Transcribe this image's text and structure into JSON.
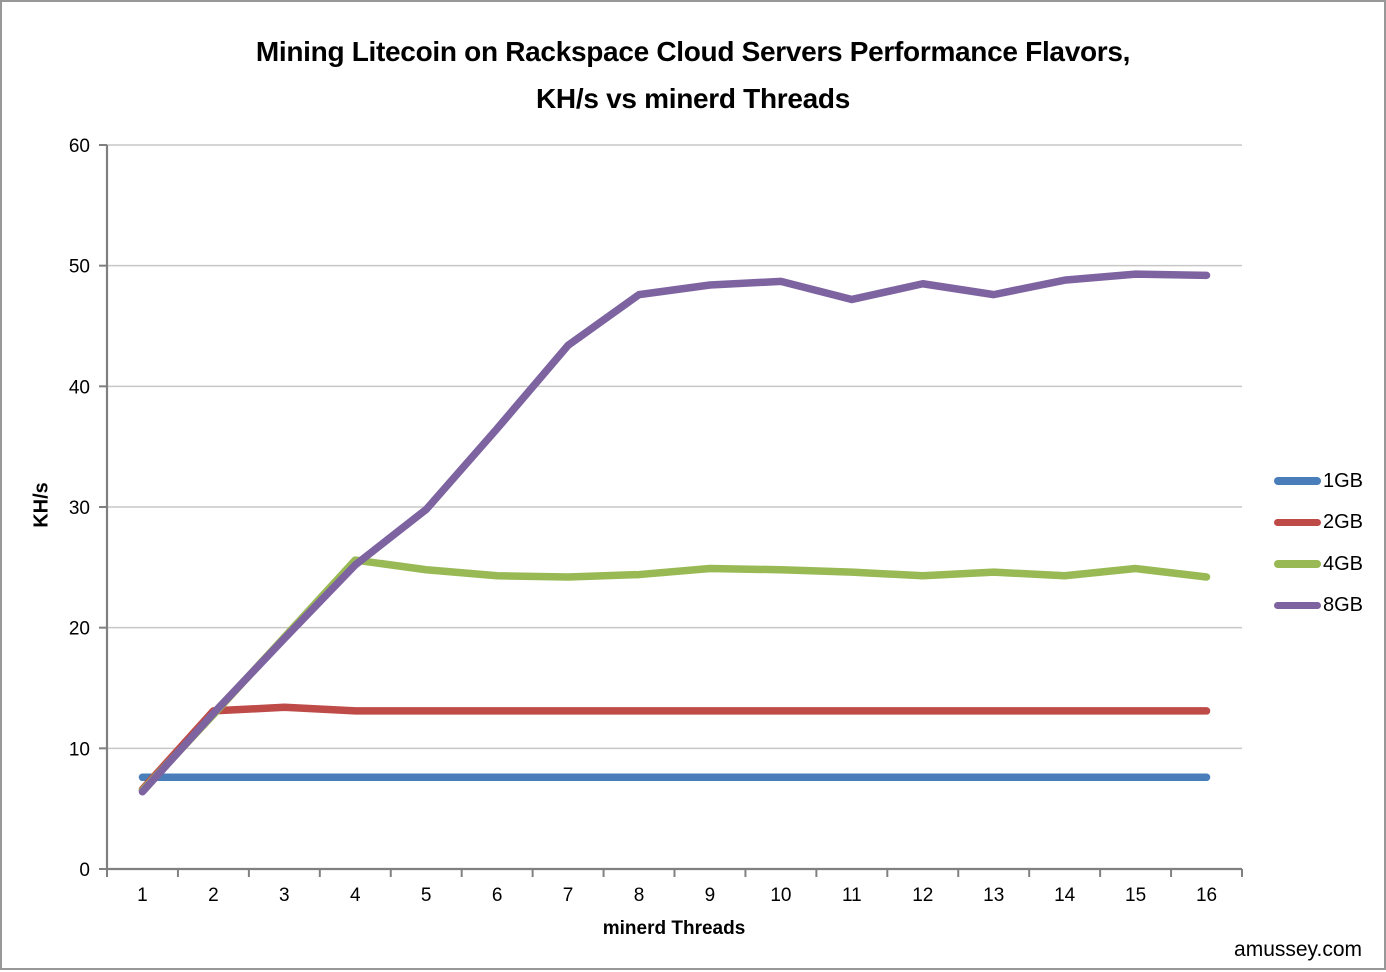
{
  "page": {
    "watermark": "amussey.com"
  },
  "colors": {
    "gridline": "#C7C7C7",
    "axis": "#808080",
    "text": "#000000",
    "frame_border": "#989898",
    "background": "#FFFFFF"
  },
  "chart_data": {
    "type": "line",
    "title_line1": "Mining Litecoin on Rackspace Cloud Servers Performance Flavors,",
    "title_line2": "KH/s vs minerd Threads",
    "xlabel": "minerd Threads",
    "ylabel": "KH/s",
    "x_categories": [
      "1",
      "2",
      "3",
      "4",
      "5",
      "6",
      "7",
      "8",
      "9",
      "10",
      "11",
      "12",
      "13",
      "14",
      "15",
      "16"
    ],
    "y_ticks": [
      0,
      10,
      20,
      30,
      40,
      50,
      60
    ],
    "ylim": [
      0,
      60
    ],
    "grid": "horizontal",
    "legend_position": "right",
    "series": [
      {
        "name": "1GB",
        "color": "#4A7EBB",
        "values": [
          7.6,
          7.6,
          7.6,
          7.6,
          7.6,
          7.6,
          7.6,
          7.6,
          7.6,
          7.6,
          7.6,
          7.6,
          7.6,
          7.6,
          7.6,
          7.6
        ]
      },
      {
        "name": "2GB",
        "color": "#BE4B48",
        "values": [
          6.6,
          13.1,
          13.4,
          13.1,
          13.1,
          13.1,
          13.1,
          13.1,
          13.1,
          13.1,
          13.1,
          13.1,
          13.1,
          13.1,
          13.1,
          13.1
        ]
      },
      {
        "name": "4GB",
        "color": "#98B954",
        "values": [
          6.5,
          12.8,
          19.2,
          25.6,
          24.8,
          24.3,
          24.2,
          24.4,
          24.9,
          24.8,
          24.6,
          24.3,
          24.6,
          24.3,
          24.9,
          24.2
        ]
      },
      {
        "name": "8GB",
        "color": "#7E63A1",
        "values": [
          6.4,
          12.9,
          19.1,
          25.2,
          29.8,
          36.5,
          43.4,
          47.6,
          48.4,
          48.7,
          47.2,
          48.5,
          47.6,
          48.8,
          49.3,
          49.2
        ]
      }
    ]
  }
}
